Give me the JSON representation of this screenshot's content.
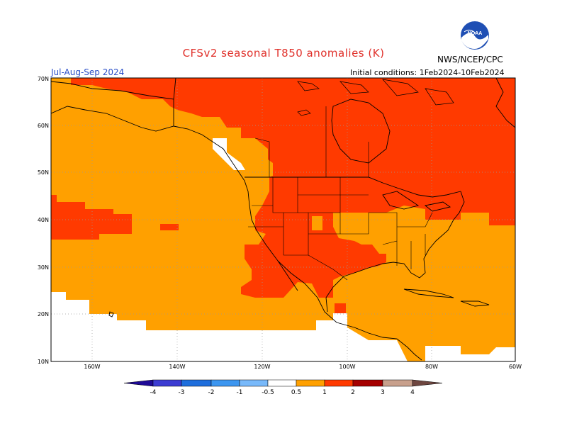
{
  "header": {
    "title": "CFSv2 seasonal T850 anomalies (K)",
    "season": "Jul-Aug-Sep 2024",
    "initial_conditions": "Initial conditions: 1Feb2024-10Feb2024",
    "agency": "NWS/NCEP/CPC",
    "logo_text": "NOAA"
  },
  "map": {
    "variable": "T850 anomaly",
    "units": "K",
    "lat_labels": [
      "70N",
      "60N",
      "50N",
      "40N",
      "30N",
      "20N",
      "10N"
    ],
    "lon_labels": [
      "160W",
      "140W",
      "120W",
      "100W",
      "80W",
      "60W"
    ],
    "colors": {
      "land_outline": "#000000",
      "gridline": "#9a9a9a",
      "neutral": "#ffffff",
      "anom_0_5_to_1": "#ffa000",
      "anom_1_to_2": "#ff3a00",
      "anom_2_to_3": "#a50000"
    }
  },
  "colorbar": {
    "labels": [
      "-4",
      "-3",
      "-2",
      "-1",
      "-0.5",
      "0.5",
      "1",
      "2",
      "3",
      "4"
    ],
    "colors": [
      "#1e0a96",
      "#3c3cd2",
      "#1e6edc",
      "#3c96f0",
      "#78b9fa",
      "#ffffff",
      "#ffa000",
      "#ff3a00",
      "#a50000",
      "#c8a08c",
      "#6e4640"
    ]
  }
}
